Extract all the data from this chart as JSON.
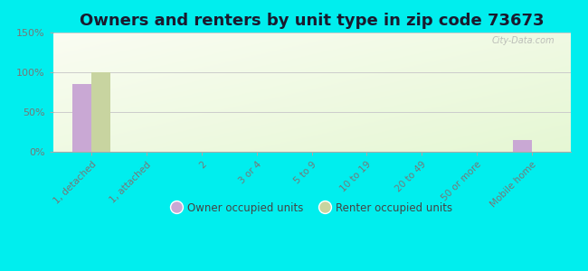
{
  "title": "Owners and renters by unit type in zip code 73673",
  "categories": [
    "1, detached",
    "1, attached",
    "2",
    "3 or 4",
    "5 to 9",
    "10 to 19",
    "20 to 49",
    "50 or more",
    "Mobile home"
  ],
  "owner_values": [
    85,
    0,
    0,
    0,
    0,
    0,
    0,
    0,
    15
  ],
  "renter_values": [
    100,
    0,
    0,
    0,
    0,
    0,
    0,
    0,
    0
  ],
  "owner_color": "#c9a8d4",
  "renter_color": "#c8d4a0",
  "background_color": "#00eeee",
  "plot_bg_color": "#e8f0d8",
  "ylim": [
    0,
    150
  ],
  "yticks": [
    0,
    50,
    100,
    150
  ],
  "ytick_labels": [
    "0%",
    "50%",
    "100%",
    "150%"
  ],
  "bar_width": 0.35,
  "title_fontsize": 13,
  "legend_owner": "Owner occupied units",
  "legend_renter": "Renter occupied units",
  "watermark": "City-Data.com",
  "grid_color": "#cccccc",
  "tick_color": "#777777",
  "title_color": "#1a1a2e"
}
